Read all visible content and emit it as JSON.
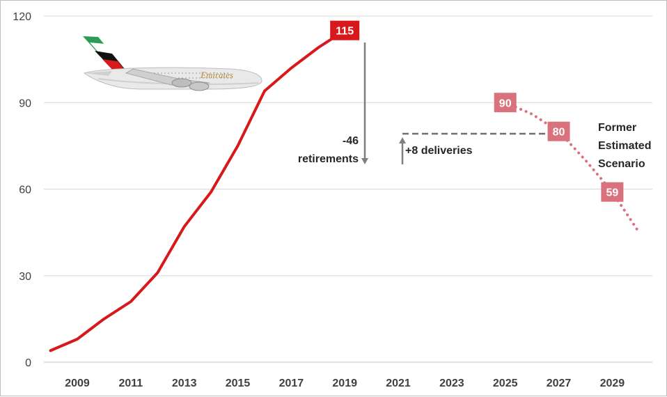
{
  "chart_data": {
    "type": "line",
    "title": "",
    "xlabel": "",
    "ylabel": "",
    "xlim": [
      2007.75,
      2030.5
    ],
    "ylim": [
      0,
      120
    ],
    "grid": "horizontal",
    "y_ticks": [
      "0",
      "30",
      "60",
      "90",
      "120"
    ],
    "x_ticks": [
      "2009",
      "2011",
      "2013",
      "2015",
      "2017",
      "2019",
      "2021",
      "2023",
      "2025",
      "2027",
      "2029"
    ],
    "series": [
      {
        "style": "solid",
        "color": "#d7191c",
        "x": [
          2008,
          2009,
          2010,
          2011,
          2012,
          2013,
          2014,
          2015,
          2016,
          2017,
          2018,
          2019
        ],
        "y": [
          4,
          8,
          15,
          21,
          31,
          47,
          59,
          75,
          94,
          102,
          109,
          115
        ]
      },
      {
        "style": "dotted",
        "color": "#d9727c",
        "x": [
          2025,
          2026,
          2027,
          2028,
          2029,
          2030
        ],
        "y": [
          90,
          86,
          80,
          70,
          59,
          45
        ]
      }
    ],
    "data_labels": [
      {
        "text": "115",
        "x": 2019,
        "y": 115,
        "color": "#d7191c"
      },
      {
        "text": "90",
        "x": 2025,
        "y": 90,
        "color": "#d9727c"
      },
      {
        "text": "80",
        "x": 2027,
        "y": 80,
        "color": "#d9727c"
      },
      {
        "text": "59",
        "x": 2029,
        "y": 59,
        "color": "#d9727c"
      }
    ],
    "annotations": {
      "retirements": [
        "-46",
        "retirements"
      ],
      "deliveries": "+8 deliveries",
      "former_scenario": [
        "Former",
        "Estimated",
        "Scenario"
      ]
    },
    "colors": {
      "primary_line": "#d7191c",
      "scenario_line": "#d9727c",
      "annotation_arrow": "#7f7f7f",
      "grid": "#d9d9d9",
      "text": "#404040"
    },
    "image": {
      "description_icon": "airplane-icon",
      "livery_text": "Emirates"
    }
  }
}
